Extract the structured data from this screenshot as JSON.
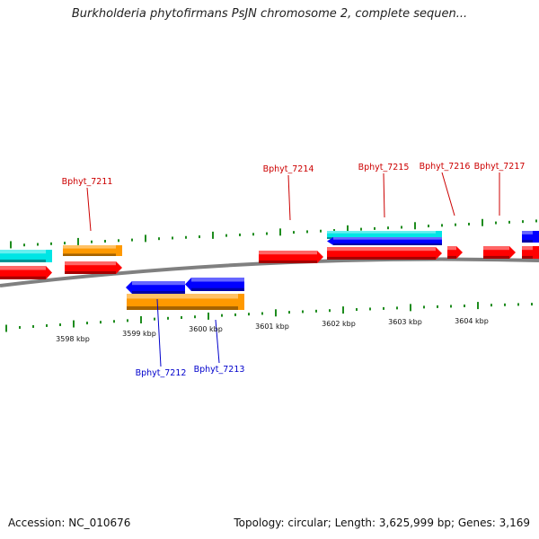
{
  "title": "Burkholderia phytofirmans PsJN chromosome 2, complete sequen...",
  "footer": {
    "accession": "Accession: NC_010676",
    "stats": "Topology: circular; Length: 3,625,999 bp; Genes: 3,169"
  },
  "colors": {
    "forward_gene": "#ff0000",
    "reverse_gene": "#0000ff",
    "orange_feature": "#ff9900",
    "cyan_feature": "#00e5e5",
    "tick": "#1e8c1e",
    "backbone": "#808080",
    "label_forward": "#cc0000",
    "label_reverse": "#0000cc"
  },
  "kbp_labels": [
    "3598 kbp",
    "3599 kbp",
    "3600 kbp",
    "3601 kbp",
    "3602 kbp",
    "3603 kbp",
    "3604 kbp"
  ],
  "gene_labels": [
    {
      "name": "Bphyt_7211",
      "strand": "forward"
    },
    {
      "name": "Bphyt_7212",
      "strand": "reverse"
    },
    {
      "name": "Bphyt_7213",
      "strand": "reverse"
    },
    {
      "name": "Bphyt_7214",
      "strand": "forward"
    },
    {
      "name": "Bphyt_7215",
      "strand": "forward"
    },
    {
      "name": "Bphyt_7216",
      "strand": "forward"
    },
    {
      "name": "Bphyt_7217",
      "strand": "forward"
    }
  ],
  "features": [
    {
      "type": "cyan",
      "name": "feature-cyan-left"
    },
    {
      "type": "orange",
      "name": "feature-orange-forward"
    },
    {
      "type": "forward",
      "name": "gene-forward-leftedge"
    },
    {
      "type": "forward",
      "name": "gene-forward-7211"
    },
    {
      "type": "reverse",
      "name": "gene-reverse-7212"
    },
    {
      "type": "reverse",
      "name": "gene-reverse-7213"
    },
    {
      "type": "orange",
      "name": "feature-orange-reverse"
    },
    {
      "type": "forward",
      "name": "gene-forward-7214"
    },
    {
      "type": "cyan",
      "name": "feature-cyan-7215"
    },
    {
      "type": "reverse",
      "name": "gene-reverse-under-7215"
    },
    {
      "type": "forward",
      "name": "gene-forward-7215"
    },
    {
      "type": "forward",
      "name": "gene-forward-7216"
    },
    {
      "type": "forward",
      "name": "gene-forward-7217"
    },
    {
      "type": "reverse",
      "name": "gene-reverse-rightedge"
    },
    {
      "type": "forward",
      "name": "gene-forward-rightedge"
    }
  ]
}
